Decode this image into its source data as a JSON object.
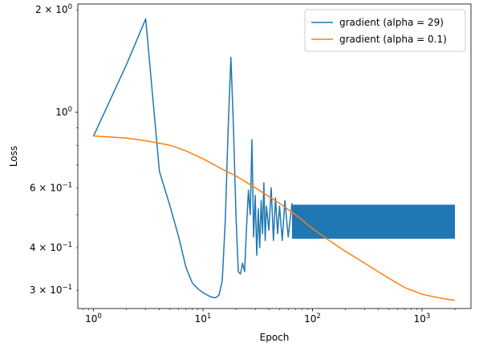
{
  "chart_data": {
    "type": "line",
    "title": "",
    "xlabel": "Epoch",
    "ylabel": "Loss",
    "xscale": "log",
    "yscale": "log",
    "xlim": [
      0.72,
      2800
    ],
    "ylim": [
      0.265,
      2.08
    ],
    "grid": false,
    "legend_position": "top-right",
    "x_major_ticks": [
      {
        "value": 1,
        "base": "10",
        "exp": "0"
      },
      {
        "value": 10,
        "base": "10",
        "exp": "1"
      },
      {
        "value": 100,
        "base": "10",
        "exp": "2"
      },
      {
        "value": 1000,
        "base": "10",
        "exp": "3"
      }
    ],
    "y_labeled_ticks": [
      {
        "value": 0.3,
        "mant": "3",
        "base": "10",
        "exp": "−1"
      },
      {
        "value": 0.4,
        "mant": "4",
        "base": "10",
        "exp": "−1"
      },
      {
        "value": 0.6,
        "mant": "6",
        "base": "10",
        "exp": "−1"
      },
      {
        "value": 1.0,
        "mant": "",
        "base": "10",
        "exp": "0"
      },
      {
        "value": 2.0,
        "mant": "2",
        "base": "10",
        "exp": "0"
      }
    ],
    "series": [
      {
        "name": "gradient (alpha = 29)",
        "color": "#1f77b4",
        "points": [
          [
            1,
            0.85
          ],
          [
            2,
            1.38
          ],
          [
            3,
            1.88
          ],
          [
            4,
            0.67
          ],
          [
            5,
            0.53
          ],
          [
            6,
            0.43
          ],
          [
            7,
            0.35
          ],
          [
            8,
            0.315
          ],
          [
            9,
            0.303
          ],
          [
            10,
            0.295
          ],
          [
            11,
            0.29
          ],
          [
            12,
            0.286
          ],
          [
            13,
            0.285
          ],
          [
            14,
            0.29
          ],
          [
            15,
            0.32
          ],
          [
            16,
            0.48
          ],
          [
            17,
            0.9
          ],
          [
            18,
            1.45
          ],
          [
            19,
            0.9
          ],
          [
            20,
            0.5
          ],
          [
            21,
            0.34
          ],
          [
            22,
            0.335
          ],
          [
            23,
            0.36
          ],
          [
            24,
            0.34
          ],
          [
            25,
            0.46
          ],
          [
            26,
            0.59
          ],
          [
            27,
            0.5
          ],
          [
            28,
            0.83
          ],
          [
            29,
            0.43
          ],
          [
            30,
            0.57
          ],
          [
            31,
            0.38
          ],
          [
            32,
            0.52
          ],
          [
            33,
            0.4
          ],
          [
            34,
            0.55
          ],
          [
            35,
            0.44
          ],
          [
            36,
            0.62
          ],
          [
            37,
            0.42
          ],
          [
            38,
            0.53
          ],
          [
            40,
            0.45
          ],
          [
            42,
            0.6
          ],
          [
            44,
            0.42
          ],
          [
            46,
            0.56
          ],
          [
            48,
            0.44
          ],
          [
            50,
            0.53
          ],
          [
            53,
            0.42
          ],
          [
            56,
            0.55
          ],
          [
            60,
            0.43
          ],
          [
            65,
            0.54
          ]
        ],
        "band": {
          "x_start": 65,
          "x_end": 2000,
          "low": 0.425,
          "high": 0.535
        }
      },
      {
        "name": "gradient (alpha = 0.1)",
        "color": "#ff7f0e",
        "points": [
          [
            1,
            0.852
          ],
          [
            2,
            0.84
          ],
          [
            3,
            0.825
          ],
          [
            5,
            0.8
          ],
          [
            7,
            0.77
          ],
          [
            10,
            0.73
          ],
          [
            15,
            0.68
          ],
          [
            20,
            0.65
          ],
          [
            30,
            0.6
          ],
          [
            50,
            0.54
          ],
          [
            70,
            0.5
          ],
          [
            100,
            0.455
          ],
          [
            150,
            0.415
          ],
          [
            200,
            0.39
          ],
          [
            300,
            0.36
          ],
          [
            500,
            0.325
          ],
          [
            700,
            0.305
          ],
          [
            1000,
            0.292
          ],
          [
            1500,
            0.284
          ],
          [
            2000,
            0.28
          ]
        ]
      }
    ]
  }
}
